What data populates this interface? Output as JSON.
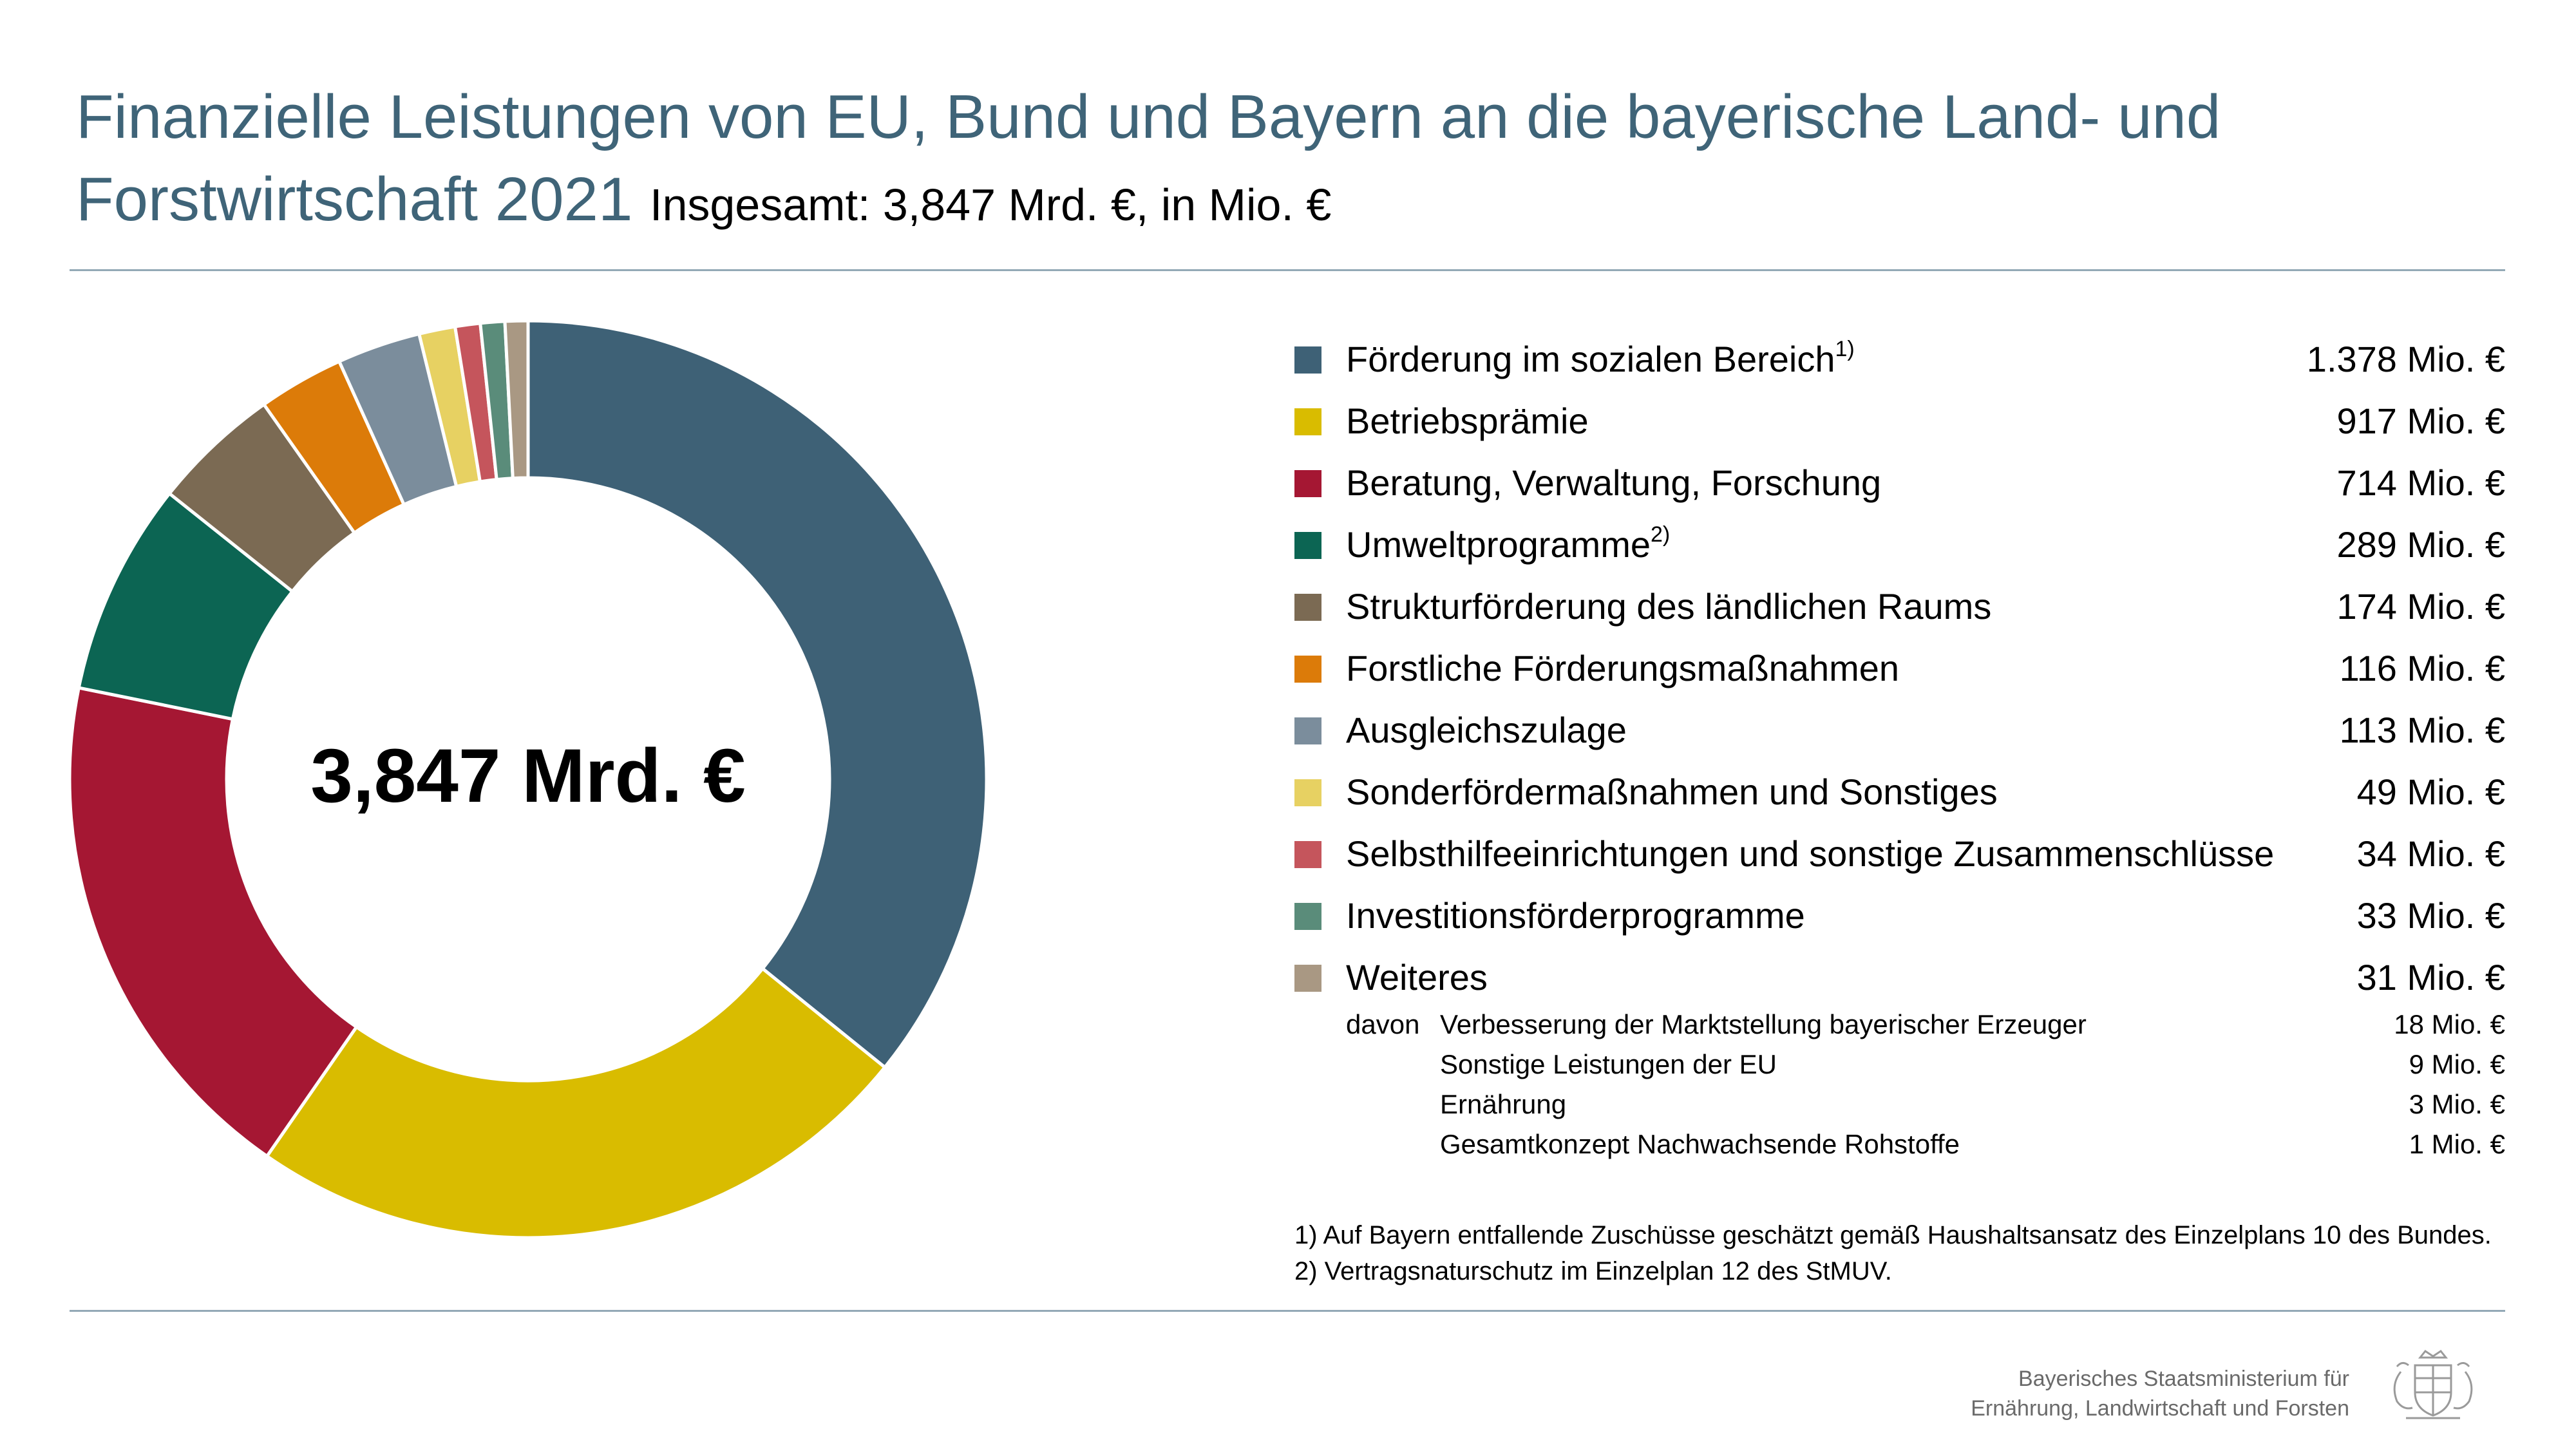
{
  "header": {
    "title": "Finanzielle Leistungen von EU, Bund und Bayern an die bayerische Land- und Forstwirtschaft 2021",
    "subtitle": "Insgesamt: 3,847 Mrd. €, in Mio. €"
  },
  "chart_data": {
    "type": "pie",
    "variant": "donut",
    "title": "Finanzielle Leistungen von EU, Bund und Bayern an die bayerische Land- und Forstwirtschaft 2021",
    "subtitle": "Insgesamt: 3,847 Mrd. €, in Mio. €",
    "center_label": "3,847 Mrd. €",
    "unit": "Mio. €",
    "legend_position": "right",
    "slices": [
      {
        "name": "Förderung im sozialen Bereich",
        "sup": "1)",
        "value": 1378,
        "display": "1.378 Mio. €",
        "color": "#3e6176"
      },
      {
        "name": "Betriebsprämie",
        "sup": "",
        "value": 917,
        "display": "917 Mio. €",
        "color": "#d9bc00"
      },
      {
        "name": "Beratung, Verwaltung, Forschung",
        "sup": "",
        "value": 714,
        "display": "714 Mio. €",
        "color": "#a51733"
      },
      {
        "name": "Umweltprogramme",
        "sup": "2)",
        "value": 289,
        "display": "289 Mio. €",
        "color": "#0c6553"
      },
      {
        "name": "Strukturförderung des ländlichen Raums",
        "sup": "",
        "value": 174,
        "display": "174 Mio. €",
        "color": "#7b6a53"
      },
      {
        "name": "Forstliche Förderungsmaßnahmen",
        "sup": "",
        "value": 116,
        "display": "116 Mio. €",
        "color": "#dc7b09"
      },
      {
        "name": "Ausgleichszulage",
        "sup": "",
        "value": 113,
        "display": "113 Mio. €",
        "color": "#7b8d9c"
      },
      {
        "name": "Sonderfördermaßnahmen und Sonstiges",
        "sup": "",
        "value": 49,
        "display": "49 Mio. €",
        "color": "#e7d162"
      },
      {
        "name": "Selbsthilfeeinrichtungen und sonstige Zusammenschlüsse",
        "sup": "",
        "value": 34,
        "display": "34 Mio. €",
        "color": "#c5555c"
      },
      {
        "name": "Investitionsförderprogramme",
        "sup": "",
        "value": 33,
        "display": "33 Mio. €",
        "color": "#5a8c7a"
      },
      {
        "name": "Weiteres",
        "sup": "",
        "value": 31,
        "display": "31 Mio. €",
        "color": "#a99883"
      }
    ],
    "weiteres_breakdown": {
      "prefix": "davon",
      "items": [
        {
          "name": "Verbesserung der Marktstellung bayerischer Erzeuger",
          "value": 18,
          "display": "18 Mio. €"
        },
        {
          "name": "Sonstige Leistungen der EU",
          "value": 9,
          "display": "9 Mio. €"
        },
        {
          "name": "Ernährung",
          "value": 3,
          "display": "3 Mio. €"
        },
        {
          "name": "Gesamtkonzept Nachwachsende Rohstoffe",
          "value": 1,
          "display": "1 Mio. €"
        }
      ]
    }
  },
  "footnotes": [
    "1) Auf Bayern entfallende Zuschüsse geschätzt gemäß Haushaltsansatz des Einzelplans 10 des Bundes.",
    "2) Vertragsnaturschutz im Einzelplan 12 des StMUV."
  ],
  "footer": {
    "ministry_line1": "Bayerisches Staatsministerium für",
    "ministry_line2": "Ernährung, Landwirtschaft und Forsten",
    "crest_icon": "bavarian-coat-of-arms-icon"
  }
}
